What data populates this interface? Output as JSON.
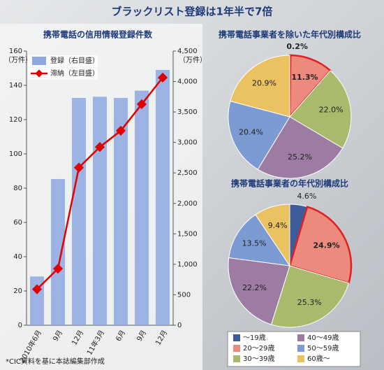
{
  "title": "ブラックリスト登録は1年半で7倍",
  "note": "*CIC資料を基に本誌編集部作成",
  "legend": {
    "labels": [
      "～19歳",
      "20～29歳",
      "30～39歳",
      "40～49歳",
      "50～59歳",
      "60歳～"
    ],
    "colors": [
      "#3d5b9b",
      "#ec8a7e",
      "#a9ba6c",
      "#9c7ca2",
      "#7c9bd2",
      "#eac262"
    ]
  },
  "chart_data": [
    {
      "type": "bar",
      "title": "携帯電話の信用情報登録件数",
      "categories": [
        "2010年6月",
        "9月",
        "12月",
        "11年3月",
        "6月",
        "9月",
        "12月"
      ],
      "ylabel": "（万件）",
      "y2label": "（万件）",
      "ylim": [
        0,
        160
      ],
      "yticks": [
        0,
        20,
        40,
        60,
        80,
        100,
        120,
        140,
        160
      ],
      "y2lim": [
        0,
        4500
      ],
      "y2ticks": [
        0,
        500,
        {
          "value": 1000,
          "label": "1,000"
        },
        {
          "value": 1500,
          "label": "1,500"
        },
        {
          "value": 2000,
          "label": "2,000"
        },
        {
          "value": 2500,
          "label": "2,500"
        },
        {
          "value": 3000,
          "label": "3,000"
        },
        {
          "value": 3500,
          "label": "3,500"
        },
        {
          "value": 4000,
          "label": "4,000"
        },
        {
          "value": 4500,
          "label": "4,500"
        }
      ],
      "series": [
        {
          "name": "登録（右目盛）",
          "type": "bar",
          "axis": "y2",
          "color": "#8ea8e2",
          "values": [
            800,
            2400,
            3730,
            3750,
            3730,
            3850,
            4190
          ]
        },
        {
          "name": "滞納（左目盛）",
          "type": "line",
          "color": "#e00000",
          "values": [
            21,
            33,
            92,
            104,
            113.5,
            129,
            144.5
          ]
        }
      ]
    },
    {
      "type": "pie",
      "title": "携帯電話事業者を除いた年代別構成比",
      "values": [
        0.2,
        11.3,
        22.0,
        25.2,
        20.4,
        20.9
      ],
      "value_labels": [
        "0.2%",
        "11.3%",
        "22.0%",
        "25.2%",
        "20.4%",
        "20.9%"
      ],
      "highlight": [
        0,
        1
      ]
    },
    {
      "type": "pie",
      "title": "携帯電話事業者の年代別構成比",
      "values": [
        4.6,
        24.9,
        25.3,
        22.2,
        13.5,
        9.4
      ],
      "value_labels": [
        "4.6%",
        "24.9%",
        "25.3%",
        "22.2%",
        "13.5%",
        "9.4%"
      ],
      "highlight": [
        1
      ]
    }
  ]
}
